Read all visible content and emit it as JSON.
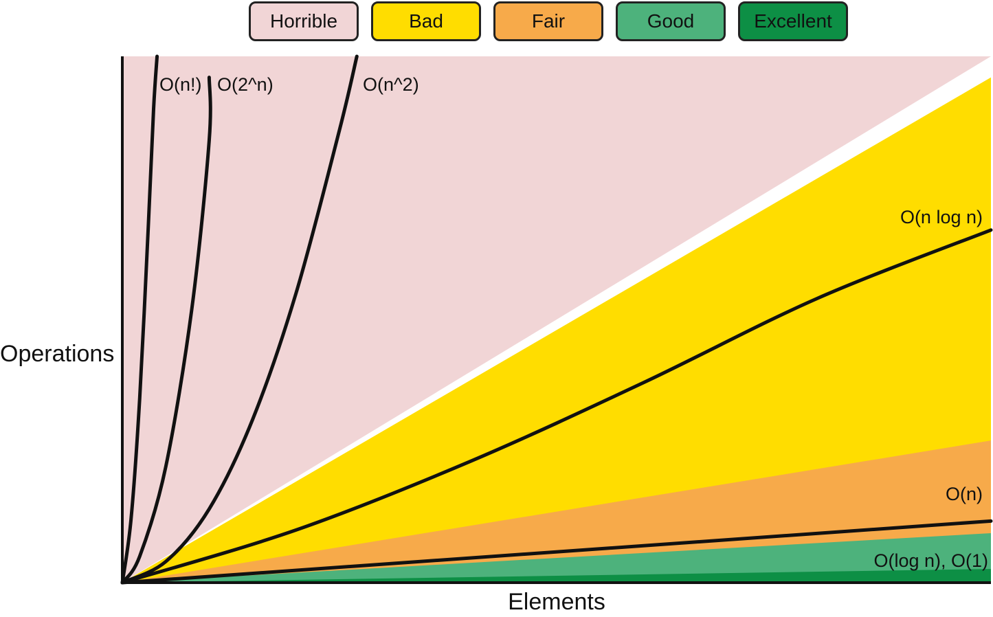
{
  "legend": {
    "items": [
      {
        "label": "Horrible",
        "color": "#f1d5d6"
      },
      {
        "label": "Bad",
        "color": "#ffdd00"
      },
      {
        "label": "Fair",
        "color": "#f7aa4a"
      },
      {
        "label": "Good",
        "color": "#4db27c"
      },
      {
        "label": "Excellent",
        "color": "#0d8f45"
      }
    ]
  },
  "chart_data": {
    "type": "line",
    "title": "",
    "xlabel": "Elements",
    "ylabel": "Operations",
    "grid": false,
    "legend_position": "top",
    "xlim": [
      0,
      1
    ],
    "ylim": [
      0,
      1
    ],
    "regions": [
      {
        "name": "Horrible",
        "color": "#f1d5d6",
        "upper_right_edge": 1.0
      },
      {
        "name": "Bad",
        "color": "#ffdd00",
        "upper_right_edge": 0.96
      },
      {
        "name": "Fair",
        "color": "#f7aa4a",
        "upper_right_edge": 0.27
      },
      {
        "name": "Good",
        "color": "#4db27c",
        "upper_right_edge": 0.094
      },
      {
        "name": "Excellent",
        "color": "#0d8f45",
        "upper_right_edge": 0.026
      }
    ],
    "series": [
      {
        "name": "O(n!)",
        "x": [
          0,
          0.01,
          0.02,
          0.03,
          0.036,
          0.04
        ],
        "y": [
          0,
          0.12,
          0.35,
          0.68,
          0.9,
          1.0
        ]
      },
      {
        "name": "O(2^n)",
        "x": [
          0,
          0.02,
          0.05,
          0.08,
          0.1,
          0.1
        ],
        "y": [
          0,
          0.05,
          0.22,
          0.52,
          0.84,
          0.96
        ]
      },
      {
        "name": "O(n^2)",
        "x": [
          0,
          0.05,
          0.1,
          0.15,
          0.2,
          0.25,
          0.27
        ],
        "y": [
          0,
          0.04,
          0.14,
          0.31,
          0.55,
          0.86,
          1.0
        ]
      },
      {
        "name": "O(n log n)",
        "x": [
          0,
          0.2,
          0.4,
          0.6,
          0.8,
          1.0
        ],
        "y": [
          0,
          0.1,
          0.23,
          0.38,
          0.54,
          0.67
        ]
      },
      {
        "name": "O(n)",
        "x": [
          0,
          1.0
        ],
        "y": [
          0,
          0.117
        ]
      },
      {
        "name": "O(log n), O(1)",
        "x": [
          0,
          1.0
        ],
        "y": [
          0,
          0.0
        ]
      }
    ]
  }
}
